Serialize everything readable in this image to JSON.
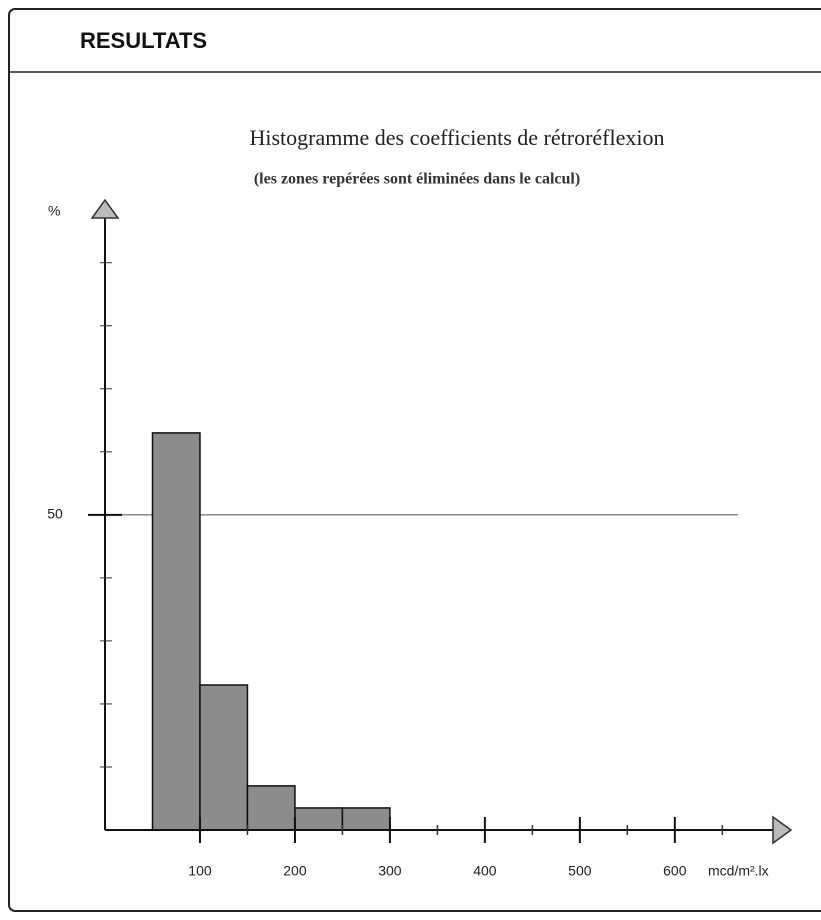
{
  "header": {
    "title": "RESULTATS"
  },
  "chart_data": {
    "type": "histogram",
    "title": "Histogramme des coefficients de rétroréflexion",
    "subtitle": "(les zones repérées sont éliminées dans le calcul)",
    "xlabel": "mcd/m².lx",
    "ylabel": "%",
    "bins": [
      50,
      100,
      150,
      200,
      250,
      300
    ],
    "values": [
      63,
      23,
      7,
      3.5,
      3.5
    ],
    "color": "#8c8c8c",
    "xlim": [
      0,
      716
    ],
    "ylim": [
      0,
      99
    ],
    "xticks": [
      100,
      200,
      300,
      400,
      500,
      600
    ],
    "xminor_ticks": [
      150,
      250,
      350,
      450,
      550,
      650
    ],
    "yticks": [
      50
    ],
    "yminor_ticks": [
      10,
      20,
      30,
      40,
      60,
      70,
      80,
      90
    ],
    "grid": true
  }
}
